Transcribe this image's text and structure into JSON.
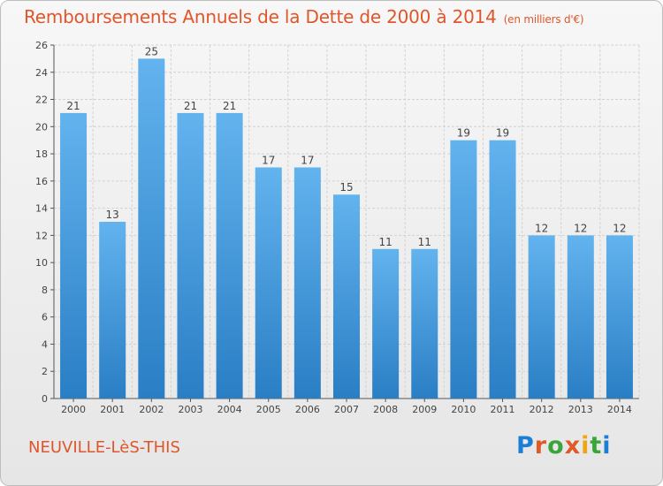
{
  "chart_data": {
    "type": "bar",
    "title": "Remboursements Annuels de la Dette de 2000 à 2014",
    "unit_note": "(en milliers d'€)",
    "categories": [
      "2000",
      "2001",
      "2002",
      "2003",
      "2004",
      "2005",
      "2006",
      "2007",
      "2008",
      "2009",
      "2010",
      "2011",
      "2012",
      "2013",
      "2014"
    ],
    "values": [
      21,
      13,
      25,
      21,
      21,
      17,
      17,
      15,
      11,
      11,
      19,
      19,
      12,
      12,
      12
    ],
    "ylim": [
      0,
      26
    ],
    "yticks": [
      0,
      2,
      4,
      6,
      8,
      10,
      12,
      14,
      16,
      18,
      20,
      22,
      24,
      26
    ],
    "grid": true,
    "bar_color_top": "#62b3ee",
    "bar_color_bottom": "#2a7ec4",
    "text_color": "#e0562b"
  },
  "place_name": "NEUVILLE-LèS-THIS",
  "logo_text": "Proxiti"
}
